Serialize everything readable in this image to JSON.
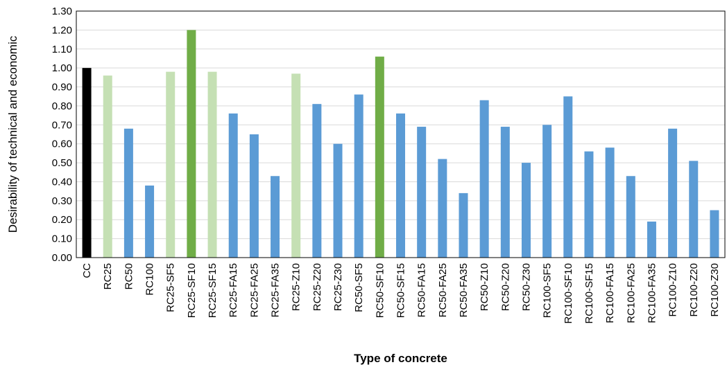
{
  "chart_data": {
    "type": "bar",
    "title": "",
    "xlabel": "Type of concrete",
    "ylabel": "Desirability of technical and economic",
    "ylim": [
      0,
      1.3
    ],
    "ytick_step": 0.1,
    "grid": "horizontal",
    "legend": "none",
    "categories": [
      "CC",
      "RC25",
      "RC50",
      "RC100",
      "RC25-SF5",
      "RC25-SF10",
      "RC25-SF15",
      "RC25-FA15",
      "RC25-FA25",
      "RC25-FA35",
      "RC25-Z10",
      "RC25-Z20",
      "RC25-Z30",
      "RC50-SF5",
      "RC50-SF10",
      "RC50-SF15",
      "RC50-FA15",
      "RC50-FA25",
      "RC50-FA35",
      "RC50-Z10",
      "RC50-Z20",
      "RC50-Z30",
      "RC100-SF5",
      "RC100-SF10",
      "RC100-SF15",
      "RC100-FA15",
      "RC100-FA25",
      "RC100-FA35",
      "RC100-Z10",
      "RC100-Z20",
      "RC100-Z30"
    ],
    "values": [
      1.0,
      0.96,
      0.68,
      0.38,
      0.98,
      1.2,
      0.98,
      0.76,
      0.65,
      0.43,
      0.97,
      0.81,
      0.6,
      0.86,
      1.06,
      0.76,
      0.69,
      0.52,
      0.34,
      0.83,
      0.69,
      0.5,
      0.7,
      0.85,
      0.56,
      0.58,
      0.43,
      0.19,
      0.68,
      0.51,
      0.25
    ],
    "bar_colors": [
      "#000000",
      "#c5e0b4",
      "#5b9bd5",
      "#5b9bd5",
      "#c5e0b4",
      "#70ad47",
      "#c5e0b4",
      "#5b9bd5",
      "#5b9bd5",
      "#5b9bd5",
      "#c5e0b4",
      "#5b9bd5",
      "#5b9bd5",
      "#5b9bd5",
      "#70ad47",
      "#5b9bd5",
      "#5b9bd5",
      "#5b9bd5",
      "#5b9bd5",
      "#5b9bd5",
      "#5b9bd5",
      "#5b9bd5",
      "#5b9bd5",
      "#5b9bd5",
      "#5b9bd5",
      "#5b9bd5",
      "#5b9bd5",
      "#5b9bd5",
      "#5b9bd5",
      "#5b9bd5",
      "#5b9bd5"
    ]
  }
}
